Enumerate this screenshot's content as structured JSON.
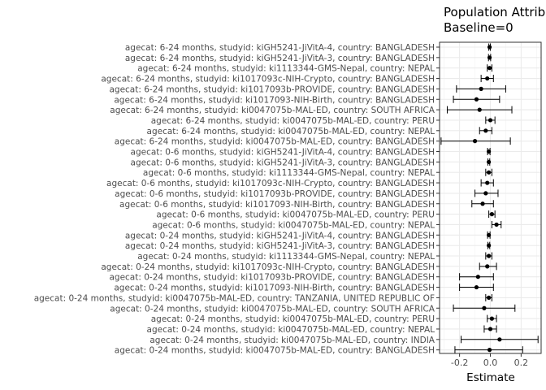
{
  "chart_data": {
    "type": "forest",
    "title_lines": [
      "Population Attrib",
      "Baseline=0"
    ],
    "xlabel": "Estimate",
    "ylabel": "",
    "xlim": [
      -0.33,
      0.33
    ],
    "x_ticks": [
      -0.2,
      0.0,
      0.2
    ],
    "x_tick_labels": [
      "-0.2",
      "0.0",
      "0.2"
    ],
    "grid": true,
    "rows": [
      {
        "label": "agecat: 6-24 months, studyid: kiGH5241-JiVitA-4, country: BANGLADESH",
        "estimate": -0.005,
        "lower": -0.01,
        "upper": 0.0
      },
      {
        "label": "agecat: 6-24 months, studyid: kiGH5241-JiVitA-3, country: BANGLADESH",
        "estimate": -0.005,
        "lower": -0.012,
        "upper": 0.002
      },
      {
        "label": "agecat: 6-24 months, studyid: ki1113344-GMS-Nepal, country: NEPAL",
        "estimate": -0.005,
        "lower": -0.02,
        "upper": 0.01
      },
      {
        "label": "agecat: 6-24 months, studyid: ki1017093c-NIH-Crypto, country: BANGLADESH",
        "estimate": -0.02,
        "lower": -0.06,
        "upper": 0.02
      },
      {
        "label": "agecat: 6-24 months, studyid: ki1017093b-PROVIDE, country: BANGLADESH",
        "estimate": -0.06,
        "lower": -0.22,
        "upper": 0.1
      },
      {
        "label": "agecat: 6-24 months, studyid: ki1017093-NIH-Birth, country: BANGLADESH",
        "estimate": -0.09,
        "lower": -0.24,
        "upper": 0.06
      },
      {
        "label": "agecat: 6-24 months, studyid: ki0047075b-MAL-ED, country: SOUTH AFRICA",
        "estimate": -0.07,
        "lower": -0.28,
        "upper": 0.14
      },
      {
        "label": "agecat: 6-24 months, studyid: ki0047075b-MAL-ED, country: PERU",
        "estimate": 0.0,
        "lower": -0.03,
        "upper": 0.03
      },
      {
        "label": "agecat: 6-24 months, studyid: ki0047075b-MAL-ED, country: NEPAL",
        "estimate": -0.03,
        "lower": -0.07,
        "upper": 0.01
      },
      {
        "label": "agecat: 6-24 months, studyid: ki0047075b-MAL-ED, country: BANGLADESH",
        "estimate": -0.1,
        "lower": -0.32,
        "upper": 0.13
      },
      {
        "label": "agecat: 0-6 months, studyid: kiGH5241-JiVitA-4, country: BANGLADESH",
        "estimate": -0.01,
        "lower": -0.018,
        "upper": -0.002
      },
      {
        "label": "agecat: 0-6 months, studyid: kiGH5241-JiVitA-3, country: BANGLADESH",
        "estimate": -0.01,
        "lower": -0.016,
        "upper": -0.004
      },
      {
        "label": "agecat: 0-6 months, studyid: ki1113344-GMS-Nepal, country: NEPAL",
        "estimate": -0.01,
        "lower": -0.03,
        "upper": 0.01
      },
      {
        "label": "agecat: 0-6 months, studyid: ki1017093c-NIH-Crypto, country: BANGLADESH",
        "estimate": -0.02,
        "lower": -0.06,
        "upper": 0.02
      },
      {
        "label": "agecat: 0-6 months, studyid: ki1017093b-PROVIDE, country: BANGLADESH",
        "estimate": -0.03,
        "lower": -0.1,
        "upper": 0.05
      },
      {
        "label": "agecat: 0-6 months, studyid: ki1017093-NIH-Birth, country: BANGLADESH",
        "estimate": -0.05,
        "lower": -0.12,
        "upper": 0.02
      },
      {
        "label": "agecat: 0-6 months, studyid: ki0047075b-MAL-ED, country: PERU",
        "estimate": 0.01,
        "lower": -0.01,
        "upper": 0.03
      },
      {
        "label": "agecat: 0-6 months, studyid: ki0047075b-MAL-ED, country: NEPAL",
        "estimate": 0.04,
        "lower": 0.01,
        "upper": 0.07
      },
      {
        "label": "agecat: 0-24 months, studyid: kiGH5241-JiVitA-4, country: BANGLADESH",
        "estimate": -0.01,
        "lower": -0.018,
        "upper": -0.002
      },
      {
        "label": "agecat: 0-24 months, studyid: kiGH5241-JiVitA-3, country: BANGLADESH",
        "estimate": -0.01,
        "lower": -0.016,
        "upper": -0.004
      },
      {
        "label": "agecat: 0-24 months, studyid: ki1113344-GMS-Nepal, country: NEPAL",
        "estimate": -0.01,
        "lower": -0.03,
        "upper": 0.01
      },
      {
        "label": "agecat: 0-24 months, studyid: ki1017093c-NIH-Crypto, country: BANGLADESH",
        "estimate": -0.02,
        "lower": -0.07,
        "upper": 0.04
      },
      {
        "label": "agecat: 0-24 months, studyid: ki1017093b-PROVIDE, country: BANGLADESH",
        "estimate": -0.08,
        "lower": -0.2,
        "upper": 0.02
      },
      {
        "label": "agecat: 0-24 months, studyid: ki1017093-NIH-Birth, country: BANGLADESH",
        "estimate": -0.09,
        "lower": -0.2,
        "upper": 0.02
      },
      {
        "label": "agecat: 0-24 months, studyid: ki0047075b-MAL-ED, country: TANZANIA, UNITED REPUBLIC OF",
        "estimate": -0.01,
        "lower": -0.03,
        "upper": 0.01
      },
      {
        "label": "agecat: 0-24 months, studyid: ki0047075b-MAL-ED, country: SOUTH AFRICA",
        "estimate": -0.04,
        "lower": -0.24,
        "upper": 0.16
      },
      {
        "label": "agecat: 0-24 months, studyid: ki0047075b-MAL-ED, country: PERU",
        "estimate": 0.01,
        "lower": -0.02,
        "upper": 0.04
      },
      {
        "label": "agecat: 0-24 months, studyid: ki0047075b-MAL-ED, country: NEPAL",
        "estimate": 0.0,
        "lower": -0.04,
        "upper": 0.04
      },
      {
        "label": "agecat: 0-24 months, studyid: ki0047075b-MAL-ED, country: INDIA",
        "estimate": 0.06,
        "lower": -0.19,
        "upper": 0.31
      },
      {
        "label": "agecat: 0-24 months, studyid: ki0047075b-MAL-ED, country: BANGLADESH",
        "estimate": -0.005,
        "lower": -0.23,
        "upper": 0.21
      }
    ]
  }
}
